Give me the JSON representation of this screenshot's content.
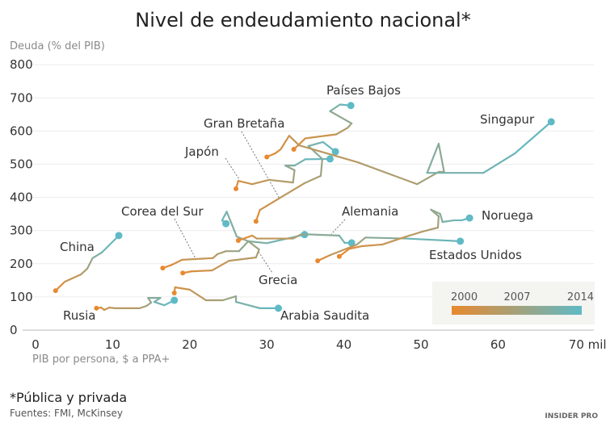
{
  "chart_data": {
    "type": "line",
    "title": "Nivel de endeudamiento nacional*",
    "ylabel": "Deuda (% del PIB)",
    "xlabel": "PIB por persona, $ a PPA+",
    "xlim": [
      0,
      72
    ],
    "ylim": [
      0,
      800
    ],
    "grid": true,
    "x_ticks": [
      "0",
      "10",
      "20",
      "30",
      "40",
      "50",
      "60",
      "70 miles"
    ],
    "x_tick_values": [
      0,
      10,
      20,
      30,
      40,
      50,
      60,
      70
    ],
    "y_ticks": [
      "0",
      "100",
      "200",
      "300",
      "400",
      "500",
      "600",
      "700",
      "800"
    ],
    "y_tick_values": [
      0,
      100,
      200,
      300,
      400,
      500,
      600,
      700,
      800
    ],
    "color_legend": {
      "labels": [
        "2000",
        "2007",
        "2014"
      ],
      "start_color": "#e8892f",
      "end_color": "#5fbac6",
      "placement": "bottom-right"
    },
    "series": [
      {
        "name": "China",
        "points": [
          [
            2.6,
            119
          ],
          [
            3.8,
            146
          ],
          [
            5.9,
            168
          ],
          [
            6.7,
            185
          ],
          [
            7.4,
            217
          ],
          [
            8.6,
            234
          ],
          [
            10.8,
            285
          ]
        ]
      },
      {
        "name": "Rusia",
        "points": [
          [
            7.9,
            66
          ],
          [
            8.5,
            68
          ],
          [
            8.9,
            61
          ],
          [
            9.6,
            68
          ],
          [
            10.3,
            66
          ],
          [
            13.5,
            66
          ],
          [
            14.4,
            73
          ],
          [
            15.0,
            83
          ],
          [
            14.6,
            97
          ],
          [
            16.2,
            97
          ],
          [
            15.4,
            85
          ],
          [
            16.7,
            75
          ],
          [
            18.0,
            90
          ]
        ]
      },
      {
        "name": "Arabia Saudita",
        "points": [
          [
            18.0,
            112
          ],
          [
            18.1,
            129
          ],
          [
            20.0,
            122
          ],
          [
            22.1,
            90
          ],
          [
            24.3,
            90
          ],
          [
            26.0,
            102
          ],
          [
            26.0,
            85
          ],
          [
            29.1,
            66
          ],
          [
            31.5,
            66
          ]
        ]
      },
      {
        "name": "Corea del Sur",
        "points": [
          [
            16.5,
            187
          ],
          [
            17.7,
            197
          ],
          [
            19.0,
            212
          ],
          [
            23.0,
            217
          ],
          [
            23.6,
            229
          ],
          [
            24.7,
            238
          ],
          [
            26.4,
            238
          ],
          [
            27.6,
            268
          ],
          [
            30.0,
            262
          ],
          [
            33.8,
            282
          ],
          [
            34.9,
            288
          ]
        ]
      },
      {
        "name": "Grecia",
        "points": [
          [
            19.1,
            172
          ],
          [
            20.2,
            177
          ],
          [
            22.9,
            180
          ],
          [
            25.1,
            209
          ],
          [
            28.6,
            219
          ],
          [
            29.0,
            243
          ],
          [
            27.6,
            268
          ],
          [
            26.1,
            282
          ],
          [
            24.8,
            357
          ],
          [
            24.2,
            331
          ],
          [
            24.7,
            321
          ]
        ]
      },
      {
        "name": "Alemania",
        "points": [
          [
            26.3,
            270
          ],
          [
            28.1,
            285
          ],
          [
            28.7,
            276
          ],
          [
            33.4,
            276
          ],
          [
            34.4,
            288
          ],
          [
            35.0,
            289
          ],
          [
            39.4,
            285
          ],
          [
            40.1,
            263
          ],
          [
            41.0,
            263
          ]
        ]
      },
      {
        "name": "Japón",
        "points": [
          [
            26.0,
            426
          ],
          [
            26.3,
            450
          ],
          [
            28.1,
            440
          ],
          [
            30.3,
            453
          ],
          [
            33.4,
            445
          ],
          [
            33.6,
            482
          ],
          [
            32.4,
            496
          ],
          [
            33.6,
            496
          ],
          [
            35.0,
            515
          ],
          [
            38.2,
            516
          ]
        ]
      },
      {
        "name": "Gran Bretaña",
        "points": [
          [
            28.6,
            328
          ],
          [
            29.1,
            362
          ],
          [
            31.6,
            397
          ],
          [
            34.9,
            443
          ],
          [
            37.0,
            465
          ],
          [
            37.2,
            516
          ],
          [
            35.4,
            555
          ],
          [
            37.3,
            567
          ],
          [
            38.9,
            538
          ]
        ]
      },
      {
        "name": "Países Bajos",
        "points": [
          [
            33.5,
            545
          ],
          [
            35.0,
            578
          ],
          [
            39.0,
            590
          ],
          [
            40.5,
            610
          ],
          [
            41.0,
            623
          ],
          [
            38.2,
            660
          ],
          [
            39.5,
            680
          ],
          [
            40.9,
            677
          ]
        ]
      },
      {
        "name": "Singapur",
        "points": [
          [
            30.0,
            522
          ],
          [
            31.1,
            533
          ],
          [
            31.8,
            545
          ],
          [
            32.9,
            586
          ],
          [
            34.2,
            557
          ],
          [
            41.8,
            506
          ],
          [
            49.5,
            440
          ],
          [
            52.3,
            477
          ],
          [
            53.0,
            477
          ],
          [
            52.3,
            562
          ],
          [
            50.8,
            474
          ],
          [
            58.1,
            474
          ],
          [
            62.2,
            533
          ],
          [
            66.9,
            628
          ]
        ]
      },
      {
        "name": "Estados Unidos",
        "points": [
          [
            36.6,
            209
          ],
          [
            38.2,
            226
          ],
          [
            41.7,
            258
          ],
          [
            42.8,
            279
          ],
          [
            48.1,
            276
          ],
          [
            55.1,
            268
          ]
        ]
      },
      {
        "name": "Noruega",
        "points": [
          [
            39.4,
            222
          ],
          [
            40.7,
            245
          ],
          [
            42.3,
            253
          ],
          [
            45.0,
            258
          ],
          [
            48.1,
            282
          ],
          [
            50.2,
            297
          ],
          [
            52.2,
            309
          ],
          [
            52.3,
            343
          ],
          [
            51.3,
            363
          ],
          [
            52.5,
            350
          ],
          [
            52.8,
            326
          ],
          [
            54.3,
            331
          ],
          [
            55.3,
            331
          ],
          [
            56.3,
            338
          ]
        ]
      }
    ]
  },
  "footnote": "*Pública y privada",
  "sources": "Fuentes: FMI, McKinsey",
  "logo": "INSIDER PRO"
}
